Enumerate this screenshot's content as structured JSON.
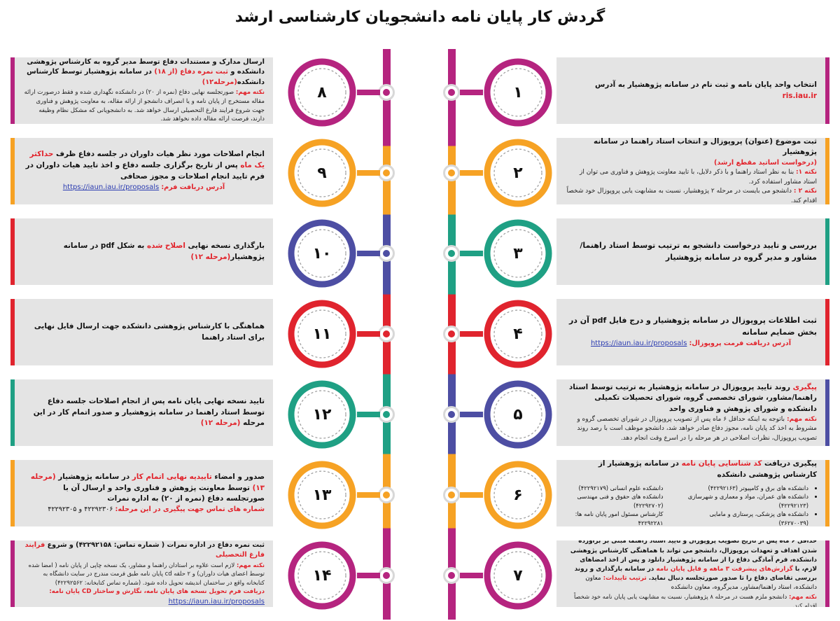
{
  "title": "گردش کار پایان نامه دانشجویان کارشناسی ارشد",
  "colors": {
    "magenta": "#b5247f",
    "orange": "#f6a224",
    "blue": "#4d4ea3",
    "red": "#e0242e",
    "teal": "#1fa084",
    "box": "#e4e4e4",
    "accent": "#e2232b",
    "link": "#2a3bb0"
  },
  "steps": {
    "s1": {
      "num": "۱",
      "main": "انتخاب واحد پایان نامه و ثبت نام در سامانه پژوهشیار به آدرس",
      "link": "ris.iau.ir"
    },
    "s2": {
      "num": "۲",
      "main": "ثبت موضوع (عنوان) پروپوزال و انتخاب استاد راهنما در سامانه پژوهشیار",
      "main_red": "(درخواست اساتید مقطع ارشد)",
      "n1_label": "نکته ۱:",
      "n1": "بنا به نظر استاد راهنما و با ذکر دلایل، با تایید معاونت پژوهش و فناوری می توان از استاد مشاور استفاده کرد.",
      "n2_label": "نکته ۲ :",
      "n2": "دانشجو می بایست در مرحله ۲ پژوهشیار، نسبت به مشابهت یابی پروپوزال خود شخصاً اقدام کند."
    },
    "s3": {
      "num": "۳",
      "main": "بررسی و تایید درخواست دانشجو به ترتیب توسط استاد راهنما/مشاور و مدیر گروه در سامانه پژوهشیار"
    },
    "s4": {
      "num": "۴",
      "main": "ثبت اطلاعات پروپوزال در سامانه پژوهشیار و درج فایل pdf آن در بخش ضمایم سامانه",
      "addr_label": "آدرس دریافت فرمت پروپوزال:",
      "link": "https://iaun.iau.ir/proposals"
    },
    "s5": {
      "num": "۵",
      "main_red": "پیگیری",
      "main": "روند تایید پروپوزال در سامانه پژوهشیار به ترتیب توسط استاد راهنما/مشاور، شورای تخصصی گروه، شورای تحصیلات تکمیلی دانشکده و شورای پژوهش و فناوری واحد",
      "note_label": "نکته مهم:",
      "note": "باتوجه به اینکه حداقل ۶ ماه پس از تصویب پروپوزال در شورای تخصصی گروه و مشروط به اخذ کد پایان نامه، مجوز دفاع صادر خواهد شد، دانشجو موظف است با رصد روند تصویب پروپوزال، نظرات اصلاحی در هر مرحله را در اسرع وقت انجام دهد."
    },
    "s6": {
      "num": "۶",
      "main": "پیگیری دریافت",
      "main_red": "کد شناسایی پایان نامه",
      "main2": "در سامانه پژوهشیار از کارشناس پژوهشی دانشکده",
      "col1": [
        "دانشکده های برق و کامپیوتر (۴۲۲۹۲۱۶۳)",
        "دانشکده های عمران، مواد و معماری و شهرسازی (۴۲۲۹۲۱۲۳)",
        "دانشکده های پزشکی، پرستاری و مامایی (۳۶۲۷۰۰۳۹)"
      ],
      "col2": [
        "دانشکده علوم انسانی (۴۲۲۹۲۱۷۹)",
        "دانشکده های حقوق و فنی مهندسی (۴۲۲۹۲۷۰۲)",
        "کارشناس مسئول امور پایان نامه ها: ۴۲۲۹۲۲۸۱"
      ]
    },
    "s7": {
      "num": "۷",
      "main": "حداقل ۶ ماه پس از تاریخ تصویب پروپوزال و تایید استاد راهنما مبنی بر برآورده شدن اهداف و تعهدات پروپوزال، دانشجو می تواند با هماهنگی کارشناس پژوهشی دانشکده، فرم آمادگی دفاع را از سامانه پژوهشیار دانلود و پس از اخذ امضاهای لازم، با",
      "main_red": "گزارش‌های پیشرفت ۳ ماهه و فایل پایان نامه",
      "main2": "در سامانه بارگذاری و روند بررسی تقاضای دفاع را تا صدور صورتجلسه دنبال نماید.",
      "order_label": "ترتیب تاییدات:",
      "order": "معاون دانشکده، استاد راهنما/مشاور، مدیرگروه، معاون دانشکده",
      "note_label": "نکته مهم:",
      "note": "دانشجو ملزم هست در مرحله ۸ پژوهشیار، نسبت به مشابهت یابی پایان نامه خود شخصاً اقدام کند."
    },
    "s8": {
      "num": "۸",
      "main": "ارسال مدارک و مستندات دفاع توسط مدیر گروه به کارشناس پژوهشی دانشکده و",
      "main_red": "ثبت نمره دفاع (از ۱۸)",
      "main2": "در سامانه پژوهشیار توسط کارشناس دانشکده",
      "main2_red": "(مرحله۱۲)",
      "note_label": "نکته مهم:",
      "note": "صورتجلسه نهایی دفاع (نمره از ۲۰) در دانشکده نگهداری شده و فقط درصورت ارائه مقاله مستخرج از پایان نامه و یا انصراف دانشجو از ارائه مقاله، به معاونت پژوهش و فناوری جهت شروع فرایند فارغ التحصیلی ارسال خواهد شد. به دانشجویانی که مشکل نظام وظیفه دارند، فرصت ارائه مقاله داده نخواهد شد."
    },
    "s9": {
      "num": "۹",
      "main": "انجام اصلاحات مورد نظر هیات داوران در جلسه دفاع ظرف",
      "main_red": "حداکثر یک ماه",
      "main2": "پس از تاریخ برگزاری جلسه دفاع و اخذ تایید هیات داوران در فرم تایید انجام اصلاحات و مجوز صحافی",
      "addr_label": "آدرس دریافت فرم:",
      "link": "https://iaun.iau.ir/proposals"
    },
    "s10": {
      "num": "۱۰",
      "main": "بارگذاری نسخه نهایی",
      "main_red": "اصلاح شده",
      "main2": "به شکل pdf در سامانه پژوهشیار",
      "main2_red": "(مرحله ۱۲)"
    },
    "s11": {
      "num": "۱۱",
      "main": "هماهنگی با کارشناس پژوهشی دانشکده جهت ارسال فایل نهایی برای استاد راهنما"
    },
    "s12": {
      "num": "۱۲",
      "main": "تایید نسخه نهایی پایان نامه پس از انجام اصلاحات جلسه دفاع توسط استاد راهنما در سامانه پژوهشیار و صدور اتمام کار در این مرحله",
      "main_red": "(مرحله ۱۲)"
    },
    "s13": {
      "num": "۱۳",
      "main": "صدور و امضاء",
      "main_red": "تاییدیه نهایی اتمام کار",
      "main2": "در سامانه پژوهشیار",
      "main2_red": "(مرحله ۱۳)",
      "main3": "توسط معاونت پژوهش و فناوری واحد و ارسال آن با صورتجلسه دفاع (نمره از ۲۰) به اداره نمرات",
      "phones_label": "شماره های تماس جهت پیگیری در این مرحله:",
      "phones": "۴۲۲۹۲۳۰۶ و ۴۲۲۹۲۳۰۵"
    },
    "s14": {
      "num": "۱۴",
      "main": "ثبت نمره دفاع در اداره نمرات ( شماره تماس: ۴۲۲۹۲۱۵۸) و شروع",
      "main_red": "فرایند فارغ التحصیلی",
      "note_label": "نکته مهم:",
      "note": "لازم است علاوه بر استادان راهنما و مشاور، یک نسخه چاپی از پایان نامه ( امضا شده توسط اعضای هیات داوران) و ۲ حلقه cd پایان نامه طبق فرمت مندرج در سایت دانشگاه به کتابخانه واقع در ساختمان اندیشه تحویل داده شود. (شماره تماس کتابخانه: ۴۲۲۹۲۵۶۲)",
      "form_label": "دریافت فرم تحویل نسخه های پایان نامه، نگارش و ساختار CD پایان نامه:",
      "link": "https://iaun.iau.ir/proposals"
    }
  }
}
